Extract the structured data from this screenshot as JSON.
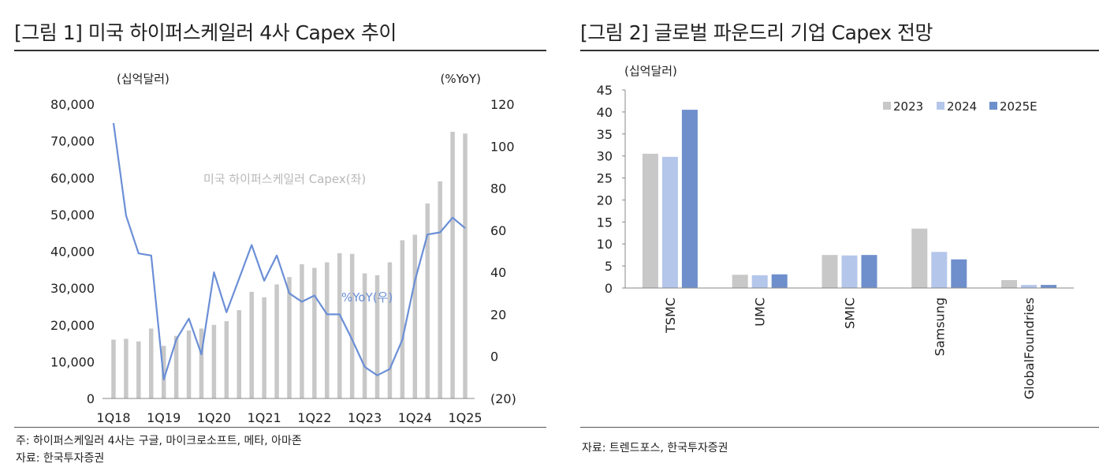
{
  "figure1": {
    "title": "[그림 1] 미국 하이퍼스케일러 4사 Capex 추이",
    "left_unit": "(십억달러)",
    "right_unit": "(%YoY)",
    "note": "주: 하이퍼스케일러 4사는 구글, 마이크로소프트, 메타, 아마존",
    "source": "자료: 한국투자증권",
    "chart_data": {
      "type": "bar",
      "title": "",
      "categories": [
        "1Q18",
        "2Q18",
        "3Q18",
        "4Q18",
        "1Q19",
        "2Q19",
        "3Q19",
        "4Q19",
        "1Q20",
        "2Q20",
        "3Q20",
        "4Q20",
        "1Q21",
        "2Q21",
        "3Q21",
        "4Q21",
        "1Q22",
        "2Q22",
        "3Q22",
        "4Q22",
        "1Q23",
        "2Q23",
        "3Q23",
        "4Q23",
        "1Q24",
        "2Q24",
        "3Q24",
        "4Q24",
        "1Q25"
      ],
      "x_tick_labels": [
        "1Q18",
        "1Q19",
        "1Q20",
        "1Q21",
        "1Q22",
        "1Q23",
        "1Q24",
        "1Q25"
      ],
      "series": [
        {
          "name": "미국 하이퍼스케일러 Capex(좌)",
          "type": "bar",
          "axis": "left",
          "color": "#c8c8c8",
          "values": [
            16000,
            16200,
            15500,
            19000,
            14300,
            17000,
            18500,
            19000,
            20000,
            21000,
            24000,
            29000,
            27500,
            31000,
            33000,
            36500,
            35500,
            37000,
            39500,
            39300,
            34000,
            33500,
            37000,
            43000,
            44500,
            53000,
            59000,
            72500,
            72000
          ]
        },
        {
          "name": "%YoY(우)",
          "type": "line",
          "axis": "right",
          "color": "#6b8fd6",
          "values": [
            111,
            67,
            49,
            48,
            -11,
            8,
            18,
            1,
            40,
            21,
            37,
            53,
            36,
            48,
            30,
            26,
            29,
            20,
            20,
            8,
            -5,
            -9,
            -6,
            8,
            36,
            58,
            59,
            66,
            61
          ]
        }
      ],
      "y_left": {
        "min": 0,
        "max": 80000,
        "ticks": [
          "0",
          "10,000",
          "20,000",
          "30,000",
          "40,000",
          "50,000",
          "60,000",
          "70,000",
          "80,000"
        ]
      },
      "y_right": {
        "min": -20,
        "max": 120,
        "ticks": [
          "(20)",
          "0",
          "20",
          "40",
          "60",
          "80",
          "100",
          "120"
        ]
      },
      "annotations": [
        "미국 하이퍼스케일러 Capex(좌)",
        "%YoY(우)"
      ],
      "legend": "none",
      "grid": false
    }
  },
  "figure2": {
    "title": "[그림 2] 글로벌 파운드리 기업 Capex 전망",
    "unit": "(십억달러)",
    "source": "자료: 트렌드포스, 한국투자증권",
    "chart_data": {
      "type": "bar",
      "title": "",
      "categories": [
        "TSMC",
        "UMC",
        "SMIC",
        "Samsung",
        "GlobalFoundries"
      ],
      "series": [
        {
          "name": "2023",
          "color": "#c8c8c8",
          "values": [
            30.5,
            3.0,
            7.5,
            13.5,
            1.8
          ]
        },
        {
          "name": "2024",
          "color": "#b4c6ea",
          "values": [
            29.8,
            2.9,
            7.4,
            8.2,
            0.7
          ]
        },
        {
          "name": "2025E",
          "color": "#6e8fcc",
          "values": [
            40.5,
            3.1,
            7.5,
            6.5,
            0.7
          ]
        }
      ],
      "y": {
        "min": 0,
        "max": 45,
        "ticks": [
          "0",
          "5",
          "10",
          "15",
          "20",
          "25",
          "30",
          "35",
          "40",
          "45"
        ]
      },
      "legend": "top-right",
      "grid": false
    }
  }
}
